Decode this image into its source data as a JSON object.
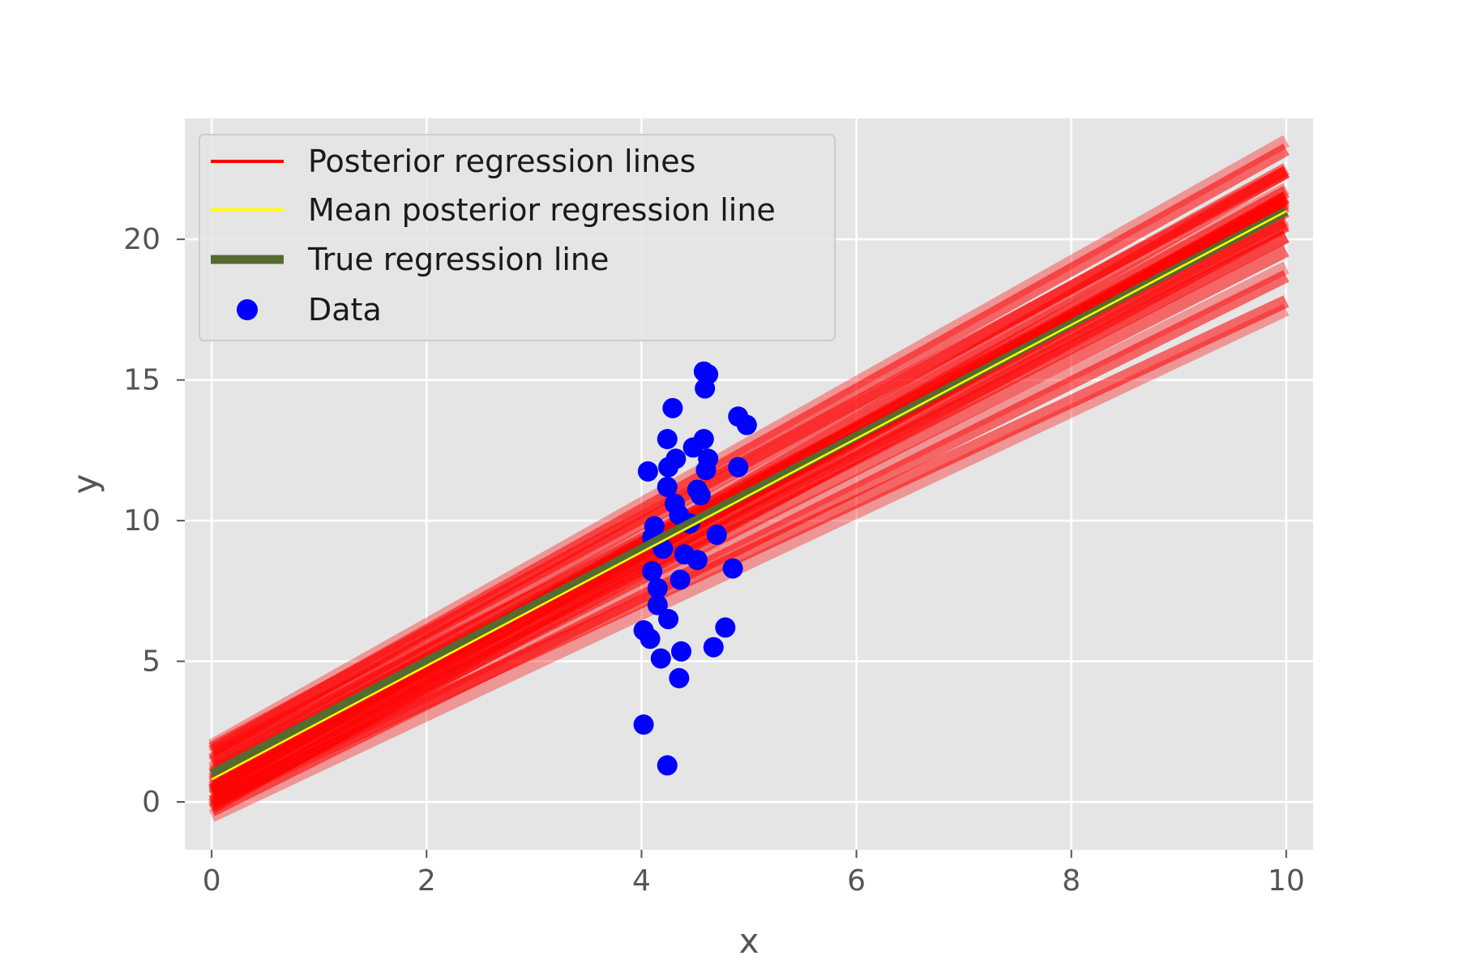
{
  "chart_data": {
    "type": "line",
    "title": "",
    "xlabel": "x",
    "ylabel": "y",
    "xlim": [
      -0.25,
      10.25
    ],
    "ylim": [
      -1.7,
      24.3
    ],
    "xticks": [
      0,
      2,
      4,
      6,
      8,
      10
    ],
    "yticks": [
      0,
      5,
      10,
      15,
      20
    ],
    "grid": true,
    "background": "#e5e5e5",
    "legend_position": "upper-left",
    "legend": [
      {
        "label": "Posterior regression lines",
        "kind": "line",
        "color": "#ff0000"
      },
      {
        "label": "Mean posterior regression line",
        "kind": "line",
        "color": "#ffff00"
      },
      {
        "label": "True regression line",
        "kind": "line",
        "color": "#556b2f"
      },
      {
        "label": "Data",
        "kind": "marker",
        "color": "#0000ff"
      }
    ],
    "true_line": {
      "intercept": 1.0,
      "slope": 2.0,
      "color": "#556b2f"
    },
    "mean_posterior_line": {
      "intercept": 0.8,
      "slope": 2.02,
      "color": "#ffff00"
    },
    "posterior_lines": {
      "color": "#ff0000",
      "lines": [
        [
          0.0,
          1.9
        ],
        [
          0.2,
          1.94
        ],
        [
          0.4,
          1.97
        ],
        [
          0.6,
          2.0
        ],
        [
          0.8,
          2.02
        ],
        [
          1.0,
          2.04
        ],
        [
          1.2,
          2.06
        ],
        [
          1.5,
          2.1
        ],
        [
          1.8,
          2.14
        ],
        [
          2.0,
          2.15
        ],
        [
          -0.2,
          2.17
        ],
        [
          0.3,
          2.12
        ],
        [
          1.1,
          1.96
        ],
        [
          0.5,
          2.08
        ],
        [
          -0.1,
          2.06
        ],
        [
          0.9,
          1.92
        ],
        [
          1.4,
          1.98
        ],
        [
          0.7,
          2.1
        ],
        [
          -0.5,
          1.8
        ],
        [
          -0.3,
          1.9
        ],
        [
          0.0,
          1.78
        ],
        [
          1.7,
          1.88
        ],
        [
          0.4,
          2.2
        ],
        [
          1.9,
          2.05
        ]
      ]
    },
    "series": [
      {
        "name": "Data",
        "type": "scatter",
        "color": "#0000ff",
        "points": [
          [
            4.58,
            15.3
          ],
          [
            4.62,
            15.2
          ],
          [
            4.59,
            14.7
          ],
          [
            4.29,
            14.0
          ],
          [
            4.9,
            13.7
          ],
          [
            4.98,
            13.4
          ],
          [
            4.24,
            12.9
          ],
          [
            4.58,
            12.9
          ],
          [
            4.48,
            12.6
          ],
          [
            4.32,
            12.2
          ],
          [
            4.62,
            12.2
          ],
          [
            4.25,
            11.9
          ],
          [
            4.6,
            11.8
          ],
          [
            4.06,
            11.75
          ],
          [
            4.9,
            11.9
          ],
          [
            4.24,
            11.2
          ],
          [
            4.52,
            11.1
          ],
          [
            4.55,
            10.9
          ],
          [
            4.31,
            10.6
          ],
          [
            4.35,
            10.2
          ],
          [
            4.12,
            9.8
          ],
          [
            4.45,
            9.9
          ],
          [
            4.7,
            9.5
          ],
          [
            4.1,
            9.4
          ],
          [
            4.2,
            9.0
          ],
          [
            4.4,
            8.8
          ],
          [
            4.52,
            8.6
          ],
          [
            4.1,
            8.2
          ],
          [
            4.85,
            8.3
          ],
          [
            4.36,
            7.9
          ],
          [
            4.15,
            7.6
          ],
          [
            4.15,
            7.0
          ],
          [
            4.25,
            6.5
          ],
          [
            4.02,
            6.1
          ],
          [
            4.08,
            5.8
          ],
          [
            4.78,
            6.2
          ],
          [
            4.37,
            5.35
          ],
          [
            4.67,
            5.5
          ],
          [
            4.18,
            5.1
          ],
          [
            4.35,
            4.4
          ],
          [
            4.02,
            2.75
          ],
          [
            4.24,
            1.3
          ]
        ]
      }
    ]
  }
}
